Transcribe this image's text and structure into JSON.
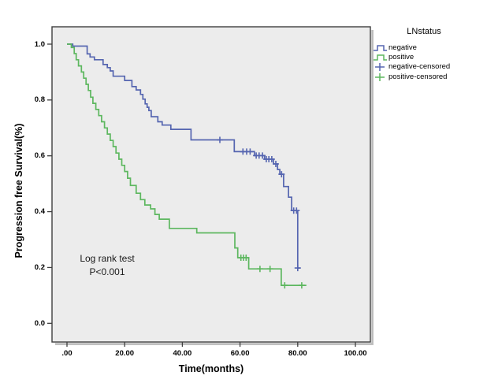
{
  "figure": {
    "background": "#ffffff",
    "plot_background": "#ececec",
    "plot_border_color": "#3e3e3e",
    "shadow_color": "#bbbbbb"
  },
  "y_axis": {
    "title": "Progression free Survival(%)",
    "tick_labels": [
      "0.0",
      "0.2",
      "0.4",
      "0.6",
      "0.8",
      "1.0"
    ],
    "tick_values": [
      0,
      0.2,
      0.4,
      0.6,
      0.8,
      1.0
    ]
  },
  "x_axis": {
    "title": "Time(months)",
    "tick_labels": [
      ".00",
      "20.00",
      "40.00",
      "60.00",
      "80.00",
      "100.00"
    ],
    "tick_values": [
      0,
      20,
      40,
      60,
      80,
      100
    ]
  },
  "annotation": {
    "line1": "Log rank test",
    "line2": "P<0.001"
  },
  "legend": {
    "title": "LNstatus",
    "items": [
      {
        "label": "negative",
        "symbol": "step-line",
        "color": "#5565b0"
      },
      {
        "label": "positive",
        "symbol": "step-line",
        "color": "#5db75f"
      },
      {
        "label": "negative-censored",
        "symbol": "plus",
        "color": "#5565b0"
      },
      {
        "label": "positive-censored",
        "symbol": "plus",
        "color": "#5db75f"
      }
    ]
  },
  "chart_data": {
    "type": "line",
    "subtype": "kaplan-meier-step",
    "title": "",
    "xlabel": "Time(months)",
    "ylabel": "Progression free Survival(%)",
    "xlim": [
      -5.2,
      105.2
    ],
    "ylim": [
      -0.067,
      1.062
    ],
    "x_ticks": [
      0,
      20,
      40,
      60,
      80,
      100
    ],
    "y_ticks": [
      0,
      0.2,
      0.4,
      0.6,
      0.8,
      1.0
    ],
    "grid": false,
    "legend_position": "right",
    "annotation": "Log rank test P<0.001",
    "series": [
      {
        "name": "negative",
        "color": "#5565b0",
        "steps": [
          [
            0,
            1.0
          ],
          [
            2,
            0.993
          ],
          [
            7,
            0.965
          ],
          [
            8,
            0.954
          ],
          [
            9.5,
            0.944
          ],
          [
            12.5,
            0.927
          ],
          [
            14,
            0.916
          ],
          [
            15,
            0.904
          ],
          [
            16,
            0.885
          ],
          [
            20,
            0.87
          ],
          [
            22.5,
            0.848
          ],
          [
            24,
            0.836
          ],
          [
            25.5,
            0.82
          ],
          [
            26.3,
            0.803
          ],
          [
            27.1,
            0.786
          ],
          [
            27.8,
            0.774
          ],
          [
            28.4,
            0.762
          ],
          [
            29.2,
            0.74
          ],
          [
            31.5,
            0.722
          ],
          [
            33,
            0.71
          ],
          [
            36,
            0.695
          ],
          [
            43,
            0.657
          ],
          [
            58,
            0.615
          ],
          [
            65,
            0.601
          ],
          [
            68.5,
            0.588
          ],
          [
            71.6,
            0.571
          ],
          [
            73,
            0.551
          ],
          [
            73.8,
            0.534
          ],
          [
            75.1,
            0.49
          ],
          [
            76.8,
            0.452
          ],
          [
            77.9,
            0.404
          ],
          [
            80,
            0.198
          ],
          [
            80.7,
            0.198
          ]
        ],
        "censored": [
          [
            53,
            0.657
          ],
          [
            61,
            0.615
          ],
          [
            62.3,
            0.615
          ],
          [
            63.5,
            0.615
          ],
          [
            65.6,
            0.601
          ],
          [
            66.6,
            0.601
          ],
          [
            67.8,
            0.601
          ],
          [
            69.1,
            0.588
          ],
          [
            70,
            0.588
          ],
          [
            71,
            0.588
          ],
          [
            72.4,
            0.571
          ],
          [
            74.4,
            0.534
          ],
          [
            78.6,
            0.404
          ],
          [
            79.6,
            0.404
          ],
          [
            80,
            0.198
          ]
        ]
      },
      {
        "name": "positive",
        "color": "#5db75f",
        "steps": [
          [
            0,
            1.0
          ],
          [
            1.5,
            0.988
          ],
          [
            2.5,
            0.966
          ],
          [
            3.2,
            0.944
          ],
          [
            4,
            0.922
          ],
          [
            5,
            0.9
          ],
          [
            5.8,
            0.878
          ],
          [
            6.6,
            0.856
          ],
          [
            7.4,
            0.834
          ],
          [
            8.2,
            0.81
          ],
          [
            9,
            0.788
          ],
          [
            10,
            0.766
          ],
          [
            11,
            0.744
          ],
          [
            12,
            0.722
          ],
          [
            13,
            0.7
          ],
          [
            14,
            0.678
          ],
          [
            15,
            0.655
          ],
          [
            16,
            0.633
          ],
          [
            17,
            0.61
          ],
          [
            18,
            0.588
          ],
          [
            19,
            0.566
          ],
          [
            20,
            0.544
          ],
          [
            21,
            0.52
          ],
          [
            22,
            0.494
          ],
          [
            24,
            0.466
          ],
          [
            25.5,
            0.443
          ],
          [
            27,
            0.424
          ],
          [
            29,
            0.41
          ],
          [
            30.5,
            0.39
          ],
          [
            32,
            0.373
          ],
          [
            35.5,
            0.34
          ],
          [
            45,
            0.324
          ],
          [
            58.2,
            0.27
          ],
          [
            59.2,
            0.235
          ],
          [
            63,
            0.195
          ],
          [
            74.3,
            0.136
          ],
          [
            83,
            0.136
          ]
        ],
        "censored": [
          [
            60.3,
            0.235
          ],
          [
            61.2,
            0.235
          ],
          [
            62.1,
            0.235
          ],
          [
            66.9,
            0.195
          ],
          [
            70.4,
            0.195
          ],
          [
            75.5,
            0.136
          ],
          [
            81.4,
            0.136
          ]
        ]
      }
    ]
  }
}
